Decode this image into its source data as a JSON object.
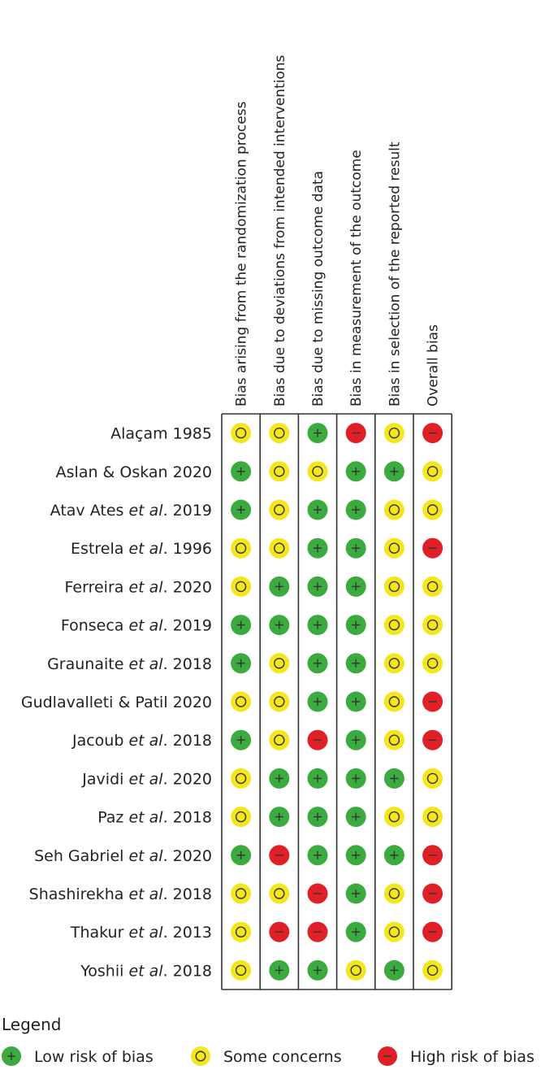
{
  "chart_data": {
    "type": "table",
    "columns": [
      "Bias arising from the  randomization process",
      "Bias due to deviations from intended interventions",
      "Bias due to missing outcome data",
      "Bias in measurement of the outcome",
      "Bias in selection of the reported result",
      "Overall bias"
    ],
    "rows": [
      {
        "name_parts": [
          "Alaçam 1985"
        ],
        "italic_index": -1,
        "values": [
          "some",
          "some",
          "low",
          "high",
          "some",
          "high"
        ]
      },
      {
        "name_parts": [
          "Aslan & Oskan 2020"
        ],
        "italic_index": -1,
        "values": [
          "low",
          "some",
          "some",
          "low",
          "low",
          "some"
        ]
      },
      {
        "name_parts": [
          "Atav Ates ",
          "et al",
          ". 2019"
        ],
        "italic_index": 1,
        "values": [
          "low",
          "some",
          "low",
          "low",
          "some",
          "some"
        ]
      },
      {
        "name_parts": [
          "Estrela ",
          "et al",
          ". 1996"
        ],
        "italic_index": 1,
        "values": [
          "some",
          "some",
          "low",
          "low",
          "some",
          "high"
        ]
      },
      {
        "name_parts": [
          "Ferreira ",
          "et al",
          ". 2020"
        ],
        "italic_index": 1,
        "values": [
          "some",
          "low",
          "low",
          "low",
          "some",
          "some"
        ]
      },
      {
        "name_parts": [
          "Fonseca ",
          "et al",
          ". 2019"
        ],
        "italic_index": 1,
        "values": [
          "low",
          "low",
          "low",
          "low",
          "some",
          "some"
        ]
      },
      {
        "name_parts": [
          "Graunaite ",
          "et al",
          ". 2018"
        ],
        "italic_index": 1,
        "values": [
          "low",
          "some",
          "low",
          "low",
          "some",
          "some"
        ]
      },
      {
        "name_parts": [
          "Gudlavalleti & Patil 2020"
        ],
        "italic_index": -1,
        "values": [
          "some",
          "some",
          "low",
          "low",
          "some",
          "high"
        ]
      },
      {
        "name_parts": [
          "Jacoub ",
          "et al",
          ". 2018"
        ],
        "italic_index": 1,
        "values": [
          "low",
          "some",
          "high",
          "low",
          "some",
          "high"
        ]
      },
      {
        "name_parts": [
          "Javidi ",
          "et al",
          ". 2020"
        ],
        "italic_index": 1,
        "values": [
          "some",
          "low",
          "low",
          "low",
          "low",
          "some"
        ]
      },
      {
        "name_parts": [
          "Paz ",
          "et al",
          ". 2018"
        ],
        "italic_index": 1,
        "values": [
          "some",
          "low",
          "low",
          "low",
          "some",
          "some"
        ]
      },
      {
        "name_parts": [
          "Seh Gabriel ",
          "et al",
          ". 2020"
        ],
        "italic_index": 1,
        "values": [
          "low",
          "high",
          "low",
          "low",
          "low",
          "high"
        ]
      },
      {
        "name_parts": [
          "Shashirekha ",
          "et al",
          ". 2018"
        ],
        "italic_index": 1,
        "values": [
          "some",
          "some",
          "high",
          "low",
          "some",
          "high"
        ]
      },
      {
        "name_parts": [
          "Thakur ",
          "et al",
          ". 2013"
        ],
        "italic_index": 1,
        "values": [
          "some",
          "high",
          "high",
          "low",
          "some",
          "high"
        ]
      },
      {
        "name_parts": [
          "Yoshii ",
          "et al",
          ". 2018"
        ],
        "italic_index": 1,
        "values": [
          "some",
          "low",
          "low",
          "some",
          "low",
          "some"
        ]
      }
    ],
    "legend": {
      "title": "Legend",
      "items": [
        {
          "key": "low",
          "label": "Low risk of bias"
        },
        {
          "key": "some",
          "label": "Some concerns"
        },
        {
          "key": "high",
          "label": "High risk of bias"
        }
      ]
    },
    "colors": {
      "low": "#3cab3f",
      "some": "#f4e61b",
      "high": "#e02027",
      "symbol": "#333333",
      "grid": "#333333"
    }
  }
}
